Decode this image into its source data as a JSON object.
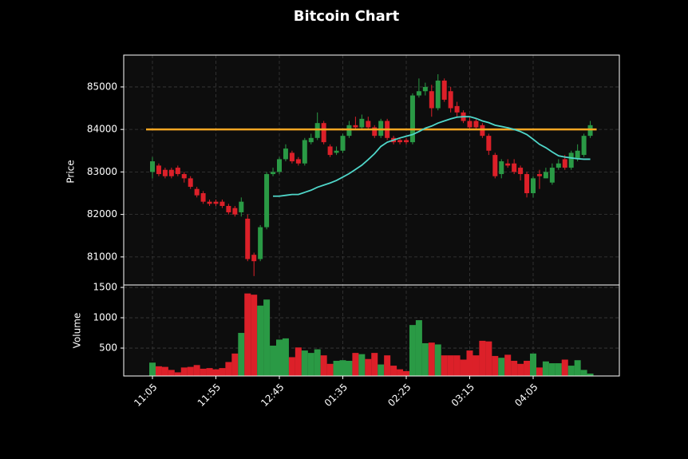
{
  "chart_data": {
    "type": "candlestick",
    "title": "Bitcoin Chart",
    "ylabel": "Price",
    "categories": [
      "11:05",
      null,
      null,
      null,
      null,
      null,
      null,
      null,
      null,
      null,
      "11:55",
      null,
      null,
      null,
      null,
      null,
      null,
      null,
      null,
      null,
      "12:45",
      null,
      null,
      null,
      null,
      null,
      null,
      null,
      null,
      null,
      "01:35",
      null,
      null,
      null,
      null,
      null,
      null,
      null,
      null,
      null,
      "02:25",
      null,
      null,
      null,
      null,
      null,
      null,
      null,
      null,
      null,
      "03:15",
      null,
      null,
      null,
      null,
      null,
      null,
      null,
      null,
      null,
      "04:05",
      null,
      null,
      null,
      null,
      null,
      null,
      null,
      null,
      null
    ],
    "open": [
      83000,
      83150,
      83050,
      83050,
      83100,
      82950,
      82850,
      82600,
      82500,
      82300,
      82300,
      82300,
      82200,
      82150,
      82050,
      81900,
      81050,
      80950,
      81700,
      82950,
      83000,
      83300,
      83450,
      83300,
      83200,
      83700,
      83800,
      84150,
      83600,
      83450,
      83500,
      83850,
      84100,
      84050,
      84200,
      84050,
      83850,
      84200,
      83800,
      83750,
      83750,
      83700,
      84800,
      84900,
      84900,
      84500,
      85150,
      84900,
      84550,
      84400,
      84200,
      84200,
      84100,
      83850,
      83400,
      82950,
      83200,
      83200,
      83100,
      82950,
      82500,
      82950,
      82850,
      82750,
      83100,
      83300,
      83100,
      83300,
      83400,
      83850
    ],
    "high": [
      83350,
      83200,
      83100,
      83100,
      83150,
      83000,
      82900,
      82650,
      82550,
      82350,
      82350,
      82350,
      82250,
      82200,
      82400,
      82000,
      81100,
      81750,
      83000,
      83100,
      83350,
      83650,
      83500,
      83350,
      83800,
      83900,
      84400,
      84200,
      83650,
      83600,
      83900,
      84200,
      84300,
      84350,
      84300,
      84100,
      84250,
      84250,
      83850,
      83800,
      83800,
      84850,
      85200,
      85100,
      85050,
      85300,
      85200,
      85000,
      84650,
      84450,
      84300,
      84250,
      84150,
      83900,
      83450,
      83300,
      83300,
      83300,
      83150,
      83000,
      82900,
      83050,
      83100,
      83200,
      83300,
      83400,
      83500,
      83650,
      83900,
      84200
    ],
    "low": [
      82850,
      82900,
      82850,
      82850,
      82900,
      82750,
      82600,
      82400,
      82250,
      82200,
      82200,
      82150,
      82000,
      81950,
      81950,
      80900,
      80550,
      80900,
      81650,
      82900,
      82950,
      83250,
      83200,
      83150,
      83150,
      83650,
      83750,
      83650,
      83350,
      83400,
      83450,
      83800,
      84000,
      84000,
      84000,
      83800,
      83800,
      83750,
      83650,
      83650,
      83650,
      83650,
      84750,
      84800,
      84300,
      84450,
      84650,
      84400,
      84300,
      84150,
      84000,
      84000,
      83800,
      83400,
      82850,
      82850,
      83100,
      82950,
      82800,
      82400,
      82400,
      82600,
      82850,
      82700,
      83050,
      83050,
      83050,
      83250,
      83350,
      83800
    ],
    "close": [
      83250,
      82950,
      82900,
      82900,
      82950,
      82850,
      82650,
      82450,
      82300,
      82250,
      82250,
      82200,
      82050,
      82000,
      82300,
      80950,
      80900,
      81700,
      82950,
      83000,
      83300,
      83550,
      83250,
      83200,
      83750,
      83800,
      84150,
      83700,
      83400,
      83500,
      83850,
      84100,
      84050,
      84250,
      84050,
      83850,
      84200,
      83800,
      83700,
      83700,
      83700,
      84800,
      84900,
      85000,
      84500,
      85150,
      84700,
      84500,
      84400,
      84200,
      84050,
      84050,
      83850,
      83500,
      82900,
      83250,
      83150,
      83000,
      82950,
      82500,
      82850,
      82900,
      83000,
      83100,
      83200,
      83100,
      83450,
      83500,
      83850,
      84100
    ],
    "up_color": "#2a9a45",
    "down_color": "#dc2029",
    "ylim": [
      80340,
      85750
    ],
    "yticks": [
      81000,
      82000,
      83000,
      84000,
      85000
    ],
    "grid": true,
    "moving_average": {
      "color": "#4fd6c9",
      "values": [
        null,
        null,
        null,
        null,
        null,
        null,
        null,
        null,
        null,
        null,
        null,
        null,
        null,
        null,
        null,
        null,
        null,
        null,
        null,
        82430,
        82430,
        82450,
        82470,
        82470,
        82520,
        82570,
        82640,
        82690,
        82740,
        82800,
        82880,
        82960,
        83060,
        83160,
        83290,
        83430,
        83600,
        83700,
        83750,
        83800,
        83840,
        83880,
        83950,
        84030,
        84080,
        84150,
        84200,
        84250,
        84290,
        84300,
        84300,
        84260,
        84200,
        84160,
        84100,
        84070,
        84040,
        84000,
        83950,
        83880,
        83770,
        83650,
        83570,
        83470,
        83380,
        83350,
        83330,
        83310,
        83300,
        83300
      ]
    },
    "hline": {
      "value": 84000,
      "color": "#f5a623"
    },
    "volume": {
      "ylabel": "Volume",
      "ylim": [
        40,
        1540
      ],
      "yticks": [
        500,
        1000,
        1500
      ],
      "values": [
        260,
        200,
        190,
        140,
        100,
        180,
        190,
        220,
        160,
        170,
        150,
        170,
        270,
        410,
        750,
        1400,
        1380,
        1200,
        1300,
        540,
        640,
        660,
        350,
        510,
        460,
        420,
        480,
        380,
        240,
        290,
        300,
        290,
        420,
        400,
        320,
        420,
        230,
        380,
        210,
        150,
        120,
        880,
        960,
        580,
        590,
        560,
        380,
        380,
        380,
        310,
        460,
        380,
        620,
        610,
        370,
        340,
        390,
        290,
        240,
        290,
        410,
        180,
        280,
        250,
        250,
        310,
        210,
        300,
        140,
        80
      ]
    }
  }
}
